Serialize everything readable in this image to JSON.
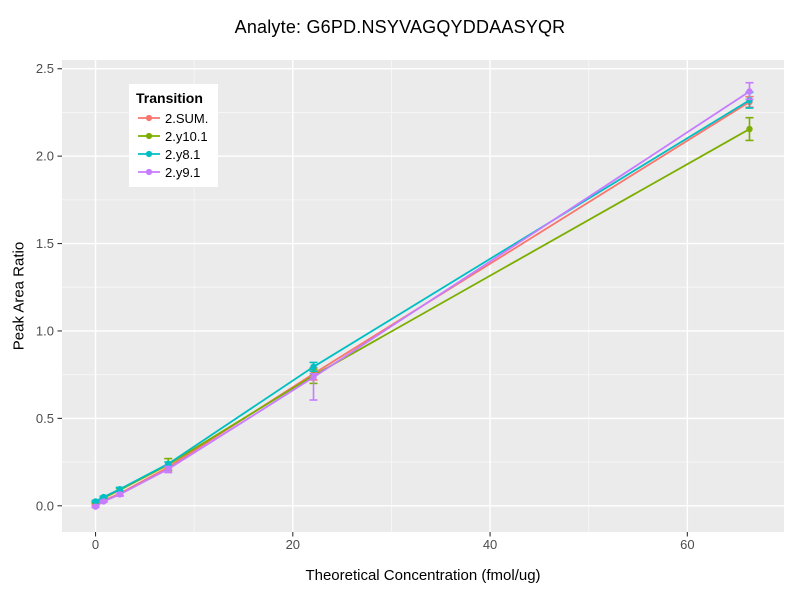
{
  "chart_data": {
    "type": "line",
    "title": "Analyte: G6PD.NSYVAGQYDDAASYQR",
    "xlabel": "Theoretical Concentration (fmol/ug)",
    "ylabel": "Peak Area Ratio",
    "legend_title": "Transition",
    "legend_position": "inside-top-left",
    "panel_background": "#EBEBEB",
    "major_grid_color": "#FFFFFF",
    "minor_grid_color": "#F7F7F7",
    "tick_label_color": "#4d4d4d",
    "xlim": [
      -3.4,
      69.8
    ],
    "ylim": [
      -0.15,
      2.55
    ],
    "x_ticks": {
      "values": [
        0,
        20,
        40,
        60
      ],
      "labels": [
        "0",
        "20",
        "40",
        "60"
      ]
    },
    "y_ticks": {
      "values": [
        0,
        0.5,
        1,
        1.5,
        2,
        2.5
      ],
      "labels": [
        "0.0",
        "0.5",
        "1.0",
        "1.5",
        "2.0",
        "2.5"
      ]
    },
    "x_minor": [
      10,
      30,
      50
    ],
    "y_minor": [
      0.25,
      0.75,
      1.25,
      1.75,
      2.25
    ],
    "x": [
      0,
      0.82,
      2.46,
      7.37,
      22.1,
      66.3
    ],
    "series": [
      {
        "name": "2.SUM.",
        "color": "#F8766D",
        "y": [
          0.005,
          0.03,
          0.07,
          0.22,
          0.755,
          2.31
        ],
        "ylo": [
          0.0,
          0.025,
          0.06,
          0.21,
          0.72,
          2.28
        ],
        "yhi": [
          0.01,
          0.035,
          0.08,
          0.23,
          0.79,
          2.34
        ]
      },
      {
        "name": "2.y10.1",
        "color": "#7CAE00",
        "y": [
          0.02,
          0.045,
          0.09,
          0.235,
          0.745,
          2.155
        ],
        "ylo": [
          0.015,
          0.04,
          0.08,
          0.2,
          0.7,
          2.09
        ],
        "yhi": [
          0.025,
          0.05,
          0.1,
          0.27,
          0.78,
          2.22
        ]
      },
      {
        "name": "2.y8.1",
        "color": "#00BFC4",
        "y": [
          0.025,
          0.05,
          0.095,
          0.24,
          0.795,
          2.32
        ],
        "ylo": [
          0.02,
          0.045,
          0.085,
          0.23,
          0.77,
          2.275
        ],
        "yhi": [
          0.03,
          0.055,
          0.105,
          0.25,
          0.82,
          2.365
        ]
      },
      {
        "name": "2.y9.1",
        "color": "#C77CFF",
        "y": [
          -0.005,
          0.025,
          0.065,
          0.21,
          0.735,
          2.37
        ],
        "ylo": [
          -0.01,
          0.02,
          0.055,
          0.19,
          0.605,
          2.325
        ],
        "yhi": [
          0.0,
          0.03,
          0.075,
          0.225,
          0.755,
          2.42
        ]
      }
    ]
  }
}
